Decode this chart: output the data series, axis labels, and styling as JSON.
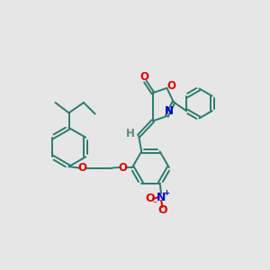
{
  "background_color": "#e6e6e6",
  "bond_color": "#2d7a6e",
  "bond_width": 1.4,
  "atom_colors": {
    "O": "#dd0000",
    "N": "#0000cc",
    "H": "#5a8a80",
    "C": "#2d7a6e"
  },
  "figsize": [
    3.0,
    3.0
  ],
  "dpi": 100,
  "xlim": [
    0,
    10
  ],
  "ylim": [
    0,
    10
  ]
}
